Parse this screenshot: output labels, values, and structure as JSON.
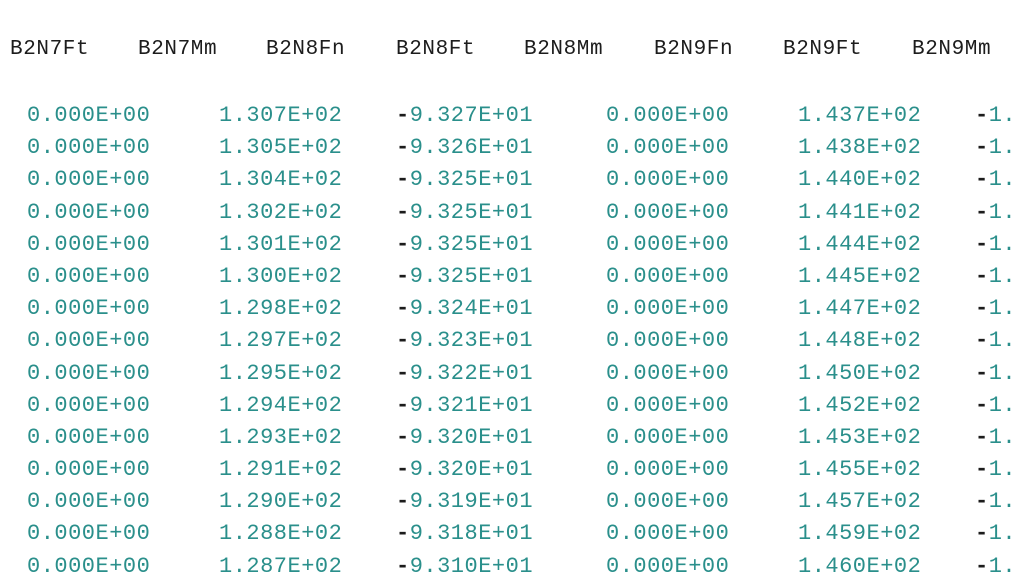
{
  "table": {
    "headers": [
      "B2N7Ft",
      "B2N7Mm",
      "B2N8Fn",
      "B2N8Ft",
      "B2N8Mm",
      "B2N9Fn",
      "B2N9Ft",
      "B2N9Mm"
    ],
    "rows": [
      [
        "0.000E+00",
        "1.307E+02",
        "-9.327E+01",
        "0.000E+00",
        "1.437E+02",
        "-1."
      ],
      [
        "0.000E+00",
        "1.305E+02",
        "-9.326E+01",
        "0.000E+00",
        "1.438E+02",
        "-1."
      ],
      [
        "0.000E+00",
        "1.304E+02",
        "-9.325E+01",
        "0.000E+00",
        "1.440E+02",
        "-1."
      ],
      [
        "0.000E+00",
        "1.302E+02",
        "-9.325E+01",
        "0.000E+00",
        "1.441E+02",
        "-1."
      ],
      [
        "0.000E+00",
        "1.301E+02",
        "-9.325E+01",
        "0.000E+00",
        "1.444E+02",
        "-1."
      ],
      [
        "0.000E+00",
        "1.300E+02",
        "-9.325E+01",
        "0.000E+00",
        "1.445E+02",
        "-1."
      ],
      [
        "0.000E+00",
        "1.298E+02",
        "-9.324E+01",
        "0.000E+00",
        "1.447E+02",
        "-1."
      ],
      [
        "0.000E+00",
        "1.297E+02",
        "-9.323E+01",
        "0.000E+00",
        "1.448E+02",
        "-1."
      ],
      [
        "0.000E+00",
        "1.295E+02",
        "-9.322E+01",
        "0.000E+00",
        "1.450E+02",
        "-1."
      ],
      [
        "0.000E+00",
        "1.294E+02",
        "-9.321E+01",
        "0.000E+00",
        "1.452E+02",
        "-1."
      ],
      [
        "0.000E+00",
        "1.293E+02",
        "-9.320E+01",
        "0.000E+00",
        "1.453E+02",
        "-1."
      ],
      [
        "0.000E+00",
        "1.291E+02",
        "-9.320E+01",
        "0.000E+00",
        "1.455E+02",
        "-1."
      ],
      [
        "0.000E+00",
        "1.290E+02",
        "-9.319E+01",
        "0.000E+00",
        "1.457E+02",
        "-1."
      ],
      [
        "0.000E+00",
        "1.288E+02",
        "-9.318E+01",
        "0.000E+00",
        "1.459E+02",
        "-1."
      ],
      [
        "0.000E+00",
        "1.287E+02",
        "-9.310E+01",
        "0.000E+00",
        "1.460E+02",
        "-1."
      ]
    ]
  },
  "colors": {
    "value_text": "#2a8f8b",
    "header_text": "#1c1c1c",
    "background": "#ffffff"
  }
}
